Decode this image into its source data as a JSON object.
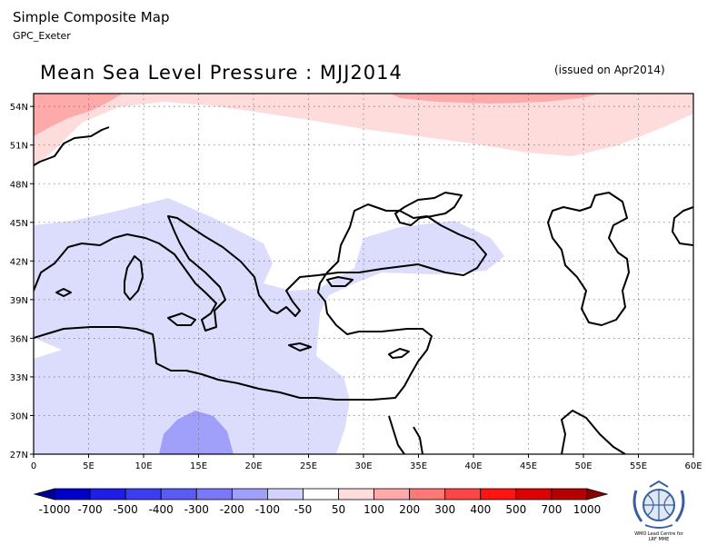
{
  "header": {
    "title": "Simple Composite Map",
    "subtitle": "GPC_Exeter"
  },
  "map": {
    "title": "Mean Sea Level Pressure : MJJ2014",
    "issued": "(issued on Apr2014)",
    "lat_labels": [
      "54N",
      "51N",
      "48N",
      "45N",
      "42N",
      "39N",
      "36N",
      "33N",
      "30N",
      "27N"
    ],
    "lon_labels": [
      "0",
      "5E",
      "10E",
      "15E",
      "20E",
      "25E",
      "30E",
      "35E",
      "40E",
      "45E",
      "50E",
      "55E",
      "60E"
    ],
    "extent": {
      "lon": [
        0,
        60
      ],
      "lat": [
        27,
        55
      ]
    },
    "grid": true
  },
  "colorbar": {
    "labels": [
      "-1000",
      "-700",
      "-500",
      "-400",
      "-300",
      "-200",
      "-100",
      "-50",
      "50",
      "100",
      "200",
      "300",
      "400",
      "500",
      "700",
      "1000"
    ],
    "colors": [
      "#000096",
      "#0000c8",
      "#1e1ee6",
      "#3c3cf0",
      "#5a5af5",
      "#7878f8",
      "#a0a0fa",
      "#d2d2fc",
      "#ffffff",
      "#ffdcdc",
      "#ffaaaa",
      "#ff7878",
      "#ff4646",
      "#ff1414",
      "#dc0000",
      "#b40000",
      "#8c0000"
    ]
  },
  "logo": {
    "line1": "WMO Lead Centre for",
    "line2": "LRF MME"
  }
}
